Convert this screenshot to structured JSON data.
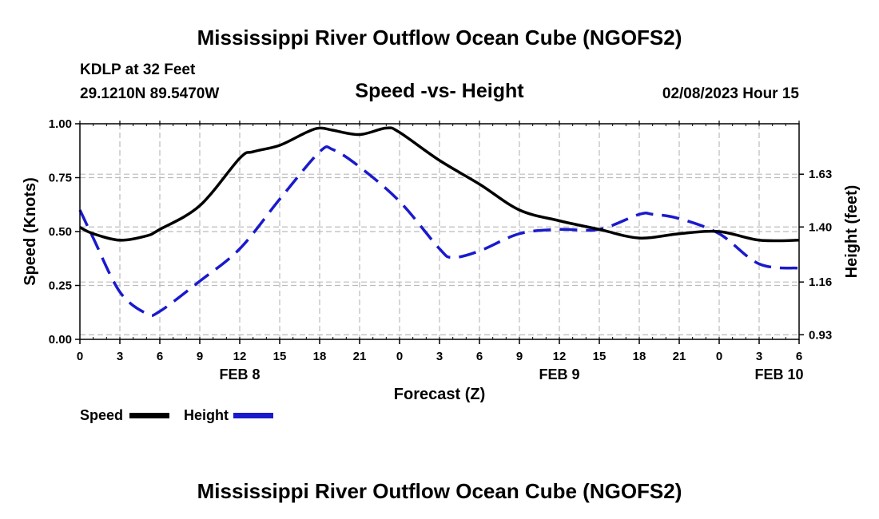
{
  "header": {
    "title": "Mississippi River Outflow Ocean Cube (NGOFS2)",
    "station": "KDLP at 32 Feet",
    "coords": "29.1210N  89.5470W",
    "subtitle": "Speed -vs- Height",
    "timestamp": "02/08/2023 Hour 15"
  },
  "footer": {
    "title": "Mississippi River Outflow Ocean Cube (NGOFS2)"
  },
  "legend": [
    {
      "label": "Speed",
      "color": "#000000",
      "style": "solid"
    },
    {
      "label": "Height",
      "color": "#1a1acc",
      "style": "dashed"
    }
  ],
  "chart_data": {
    "type": "line",
    "xlabel": "Forecast (Z)",
    "ylabel_left": "Speed (Knots)",
    "ylabel_right": "Height (feet)",
    "x_range_hours": [
      0,
      54
    ],
    "x_tick_labels": [
      "0",
      "3",
      "6",
      "9",
      "12",
      "15",
      "18",
      "21",
      "0",
      "3",
      "6",
      "9",
      "12",
      "15",
      "18",
      "21",
      "0",
      "3",
      "6"
    ],
    "date_labels": [
      {
        "hour": 12,
        "label": "FEB 8"
      },
      {
        "hour": 36,
        "label": "FEB 9"
      },
      {
        "hour": 52.5,
        "label": "FEB 10"
      }
    ],
    "y_left": {
      "range": [
        0,
        1
      ],
      "ticks": [
        "0.00",
        "0.25",
        "0.50",
        "0.75",
        "1.00"
      ],
      "tick_values": [
        0,
        0.25,
        0.5,
        0.75,
        1.0
      ]
    },
    "y_right": {
      "range": [
        0.91,
        1.85
      ],
      "ticks": [
        "0.93",
        "1.16",
        "1.40",
        "1.63"
      ],
      "tick_values": [
        0.93,
        1.16,
        1.4,
        1.63
      ]
    },
    "series": [
      {
        "name": "Speed",
        "axis": "left",
        "color": "#000000",
        "dash": "solid",
        "x": [
          0,
          1,
          3,
          5,
          6,
          9,
          12,
          13,
          15,
          17,
          18,
          19,
          21,
          23,
          24,
          27,
          30,
          33,
          36,
          39,
          42,
          45,
          48,
          51,
          54
        ],
        "y": [
          0.52,
          0.49,
          0.46,
          0.48,
          0.51,
          0.62,
          0.84,
          0.87,
          0.9,
          0.96,
          0.98,
          0.97,
          0.95,
          0.98,
          0.96,
          0.83,
          0.72,
          0.6,
          0.55,
          0.51,
          0.47,
          0.49,
          0.5,
          0.46,
          0.46
        ]
      },
      {
        "name": "Height",
        "axis": "left",
        "color": "#1a1acc",
        "dash": "dashed",
        "x": [
          0,
          1,
          3,
          5,
          6,
          9,
          12,
          15,
          18,
          19,
          21,
          24,
          27,
          28,
          30,
          33,
          36,
          39,
          42,
          43,
          45,
          48,
          51,
          54
        ],
        "y": [
          0.6,
          0.47,
          0.22,
          0.12,
          0.13,
          0.27,
          0.42,
          0.65,
          0.87,
          0.88,
          0.8,
          0.64,
          0.42,
          0.38,
          0.41,
          0.49,
          0.51,
          0.51,
          0.58,
          0.58,
          0.56,
          0.49,
          0.35,
          0.33
        ]
      }
    ]
  }
}
